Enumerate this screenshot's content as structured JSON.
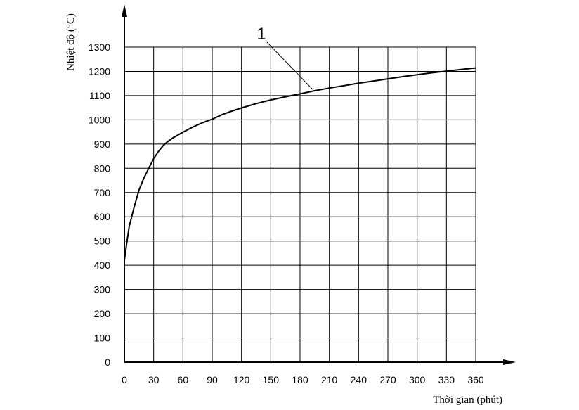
{
  "chart_data": {
    "type": "line",
    "xlabel": "Thời gian (phút)",
    "ylabel": "Nhiệt độ (°C)",
    "xlim": [
      0,
      360
    ],
    "ylim": [
      0,
      1300
    ],
    "x_ticks": [
      "0",
      "30",
      "60",
      "90",
      "120",
      "150",
      "180",
      "210",
      "240",
      "270",
      "300",
      "330",
      "360"
    ],
    "y_ticks": [
      "0",
      "100",
      "200",
      "300",
      "400",
      "500",
      "600",
      "700",
      "800",
      "900",
      "1000",
      "1100",
      "1200",
      "1300"
    ],
    "grid": true,
    "series": [
      {
        "x": [
          0,
          2,
          5,
          10,
          15,
          20,
          25,
          30,
          35,
          40,
          45,
          50,
          60,
          70,
          80,
          90,
          100,
          110,
          120,
          135,
          150,
          165,
          180,
          195,
          210,
          225,
          240,
          255,
          270,
          285,
          300,
          315,
          330,
          345,
          355,
          360
        ],
        "values": [
          420,
          480,
          560,
          640,
          710,
          760,
          800,
          840,
          870,
          895,
          912,
          926,
          949,
          970,
          988,
          1003,
          1021,
          1036,
          1049,
          1067,
          1082,
          1095,
          1107,
          1120,
          1131,
          1141,
          1151,
          1160,
          1169,
          1178,
          1186,
          1194,
          1201,
          1208,
          1212,
          1214
        ]
      }
    ],
    "annotations": [
      {
        "text": "1",
        "x": 193,
        "y": 1125
      }
    ]
  }
}
